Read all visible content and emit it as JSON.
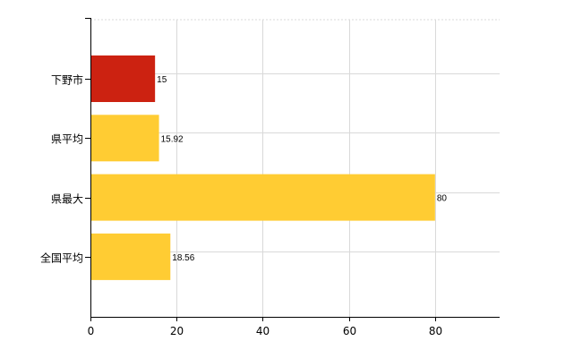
{
  "chart_data": {
    "type": "bar",
    "orientation": "horizontal",
    "categories": [
      "下野市",
      "県平均",
      "県最大",
      "全国平均"
    ],
    "values": [
      15,
      15.92,
      80,
      18.56
    ],
    "data_labels": [
      "15",
      "15.92",
      "80",
      "18.56"
    ],
    "colors": [
      "#cc2211",
      "#ffcc33",
      "#ffcc33",
      "#ffcc33"
    ],
    "x_ticks": [
      0,
      20,
      40,
      60,
      80
    ],
    "xlim": [
      0,
      95
    ],
    "grid": true,
    "legend": "none",
    "title": "",
    "xlabel": "",
    "ylabel": ""
  }
}
